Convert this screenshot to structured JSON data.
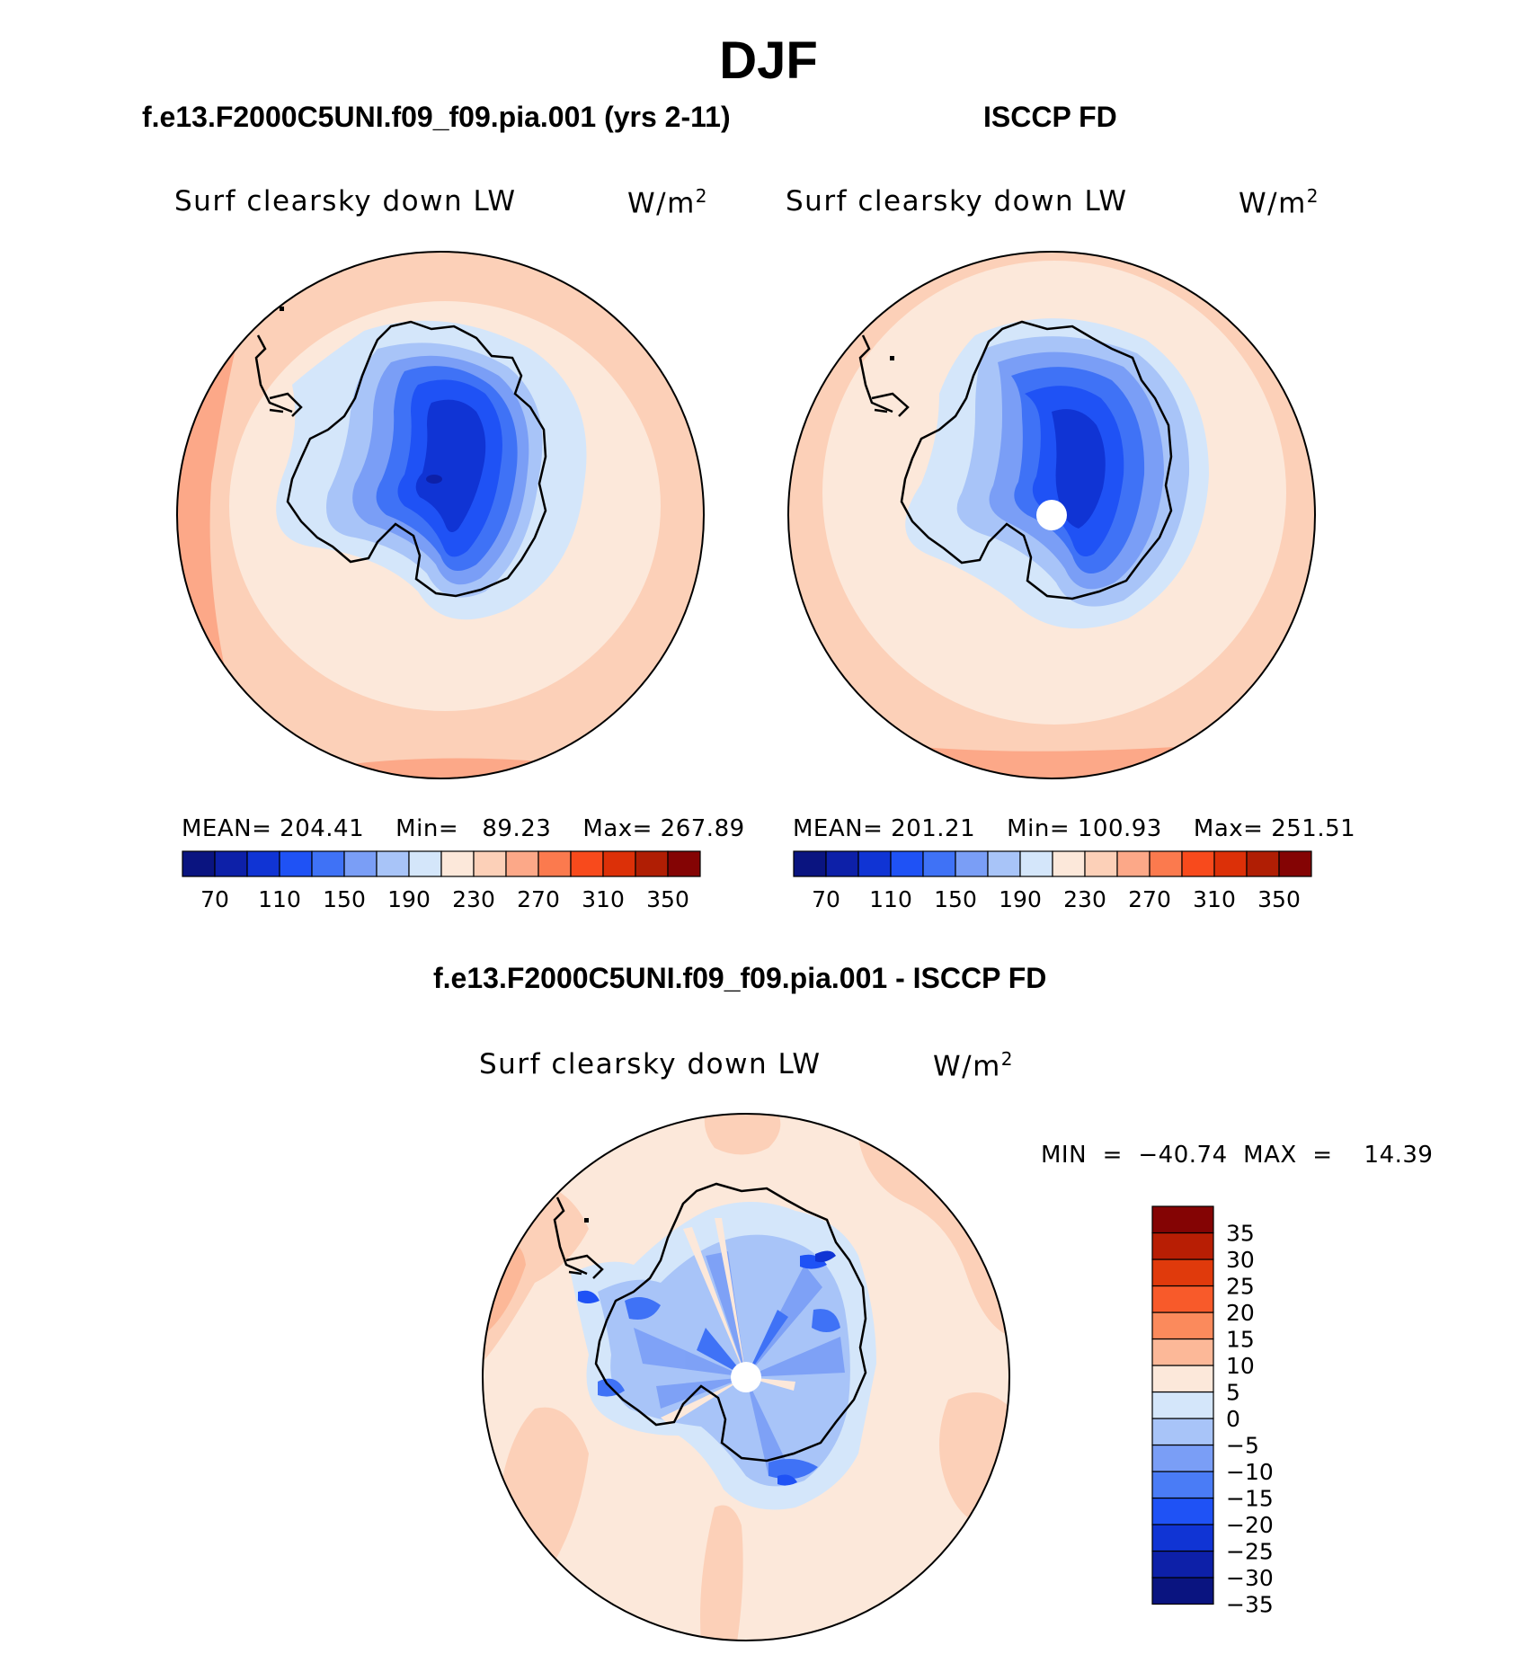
{
  "figure": {
    "season_title": "DJF"
  },
  "panels": [
    {
      "title": "f.e13.F2000C5UNI.f09_f09.pia.001 (yrs 2-11)",
      "variable": "Surf clearsky down LW",
      "units_base": "W/m",
      "units_exp": "2",
      "stats": "MEAN= 204.41    Min=   89.23    Max= 267.89"
    },
    {
      "title": "ISCCP FD",
      "variable": "Surf clearsky down LW",
      "units_base": "W/m",
      "units_exp": "2",
      "stats": "MEAN= 201.21    Min= 100.93    Max= 251.51"
    },
    {
      "title": "f.e13.F2000C5UNI.f09_f09.pia.001 - ISCCP FD",
      "variable": "Surf clearsky down LW",
      "units_base": "W/m",
      "units_exp": "2",
      "stats": "MIN  =  −40.74  MAX  =    14.39"
    }
  ],
  "colorbar_abs": {
    "colors": [
      "#0a1480",
      "#0d20a8",
      "#1034d4",
      "#1f52f5",
      "#3f72f6",
      "#7a9ef6",
      "#a8c4f8",
      "#d4e6fa",
      "#fce8da",
      "#fcd0b8",
      "#fca888",
      "#fb7a4e",
      "#f84a1c",
      "#dc3008",
      "#b01e04",
      "#840404"
    ],
    "tick_labels": [
      "70",
      "110",
      "150",
      "190",
      "230",
      "270",
      "310",
      "350"
    ]
  },
  "colorbar_diff": {
    "colors": [
      "#0a1480",
      "#0d20a8",
      "#1034d4",
      "#1f52f5",
      "#4a7cf6",
      "#7a9ef6",
      "#a8c4f8",
      "#d4e6fa",
      "#fce8da",
      "#fcb898",
      "#fb8a5c",
      "#f85a2a",
      "#e03a0c",
      "#b81e04",
      "#840404"
    ],
    "tick_labels": [
      "35",
      "30",
      "25",
      "20",
      "15",
      "10",
      "5",
      "0",
      "−5",
      "−10",
      "−15",
      "−20",
      "−25",
      "−30",
      "−35"
    ]
  }
}
